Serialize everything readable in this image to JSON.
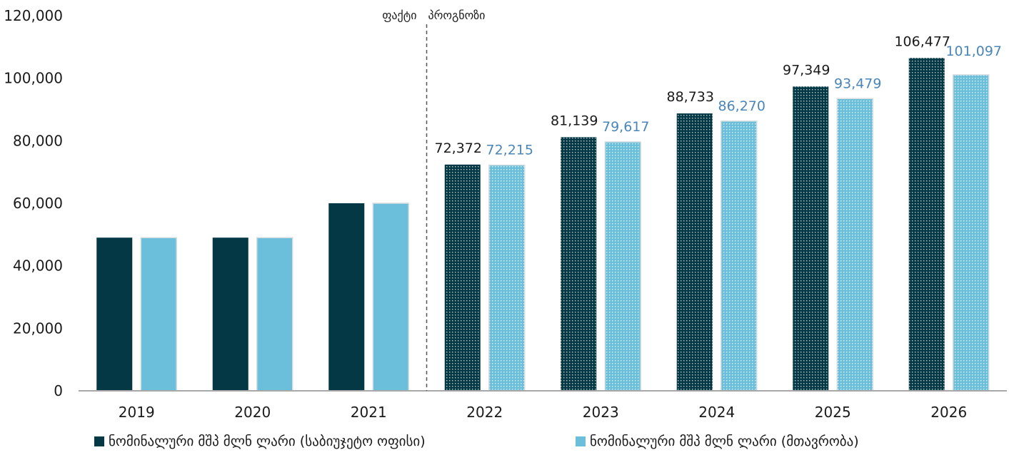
{
  "chart_data": {
    "type": "bar",
    "categories": [
      "2019",
      "2020",
      "2021",
      "2022",
      "2023",
      "2024",
      "2025",
      "2026"
    ],
    "series": [
      {
        "name": "ნომინალური მშპ მლნ ლარი (საბიუჯეტო ოფისი)",
        "values": [
          49000,
          49000,
          60000,
          72372,
          81139,
          88733,
          97349,
          106477
        ],
        "labels": [
          "",
          "",
          "",
          "72,372",
          "81,139",
          "88,733",
          "97,349",
          "106,477"
        ],
        "color": "#033844",
        "label_color": "#1a1a1a"
      },
      {
        "name": "ნომინალური მშპ მლნ ლარი (მთავრობა)",
        "values": [
          49000,
          49000,
          60000,
          72215,
          79617,
          86270,
          93479,
          101097
        ],
        "labels": [
          "",
          "",
          "",
          "72,215",
          "79,617",
          "86,270",
          "93,479",
          "101,097"
        ],
        "color": "#6bbfdb",
        "label_color": "#4a86b8"
      }
    ],
    "ylim": [
      0,
      120000
    ],
    "yticks": [
      "0",
      "20,000",
      "40,000",
      "60,000",
      "80,000",
      "100,000",
      "120,000"
    ],
    "forecast_from_index": 3,
    "annotations": {
      "fact": "ფაქტი",
      "forecast": "პროგნოზი"
    },
    "grid": false,
    "legend_position": "bottom"
  }
}
